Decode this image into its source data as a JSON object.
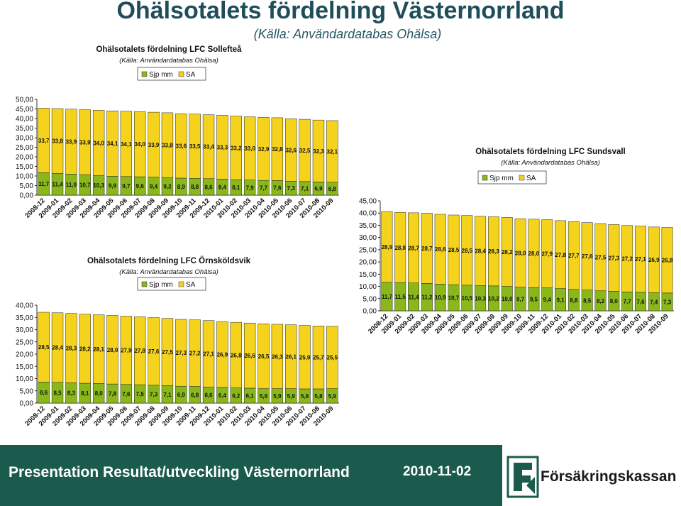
{
  "page": {
    "title": "Ohälsotalets fördelning Västernorrland",
    "subtitle": "(Källa: Användardatabas Ohälsa)"
  },
  "footer": {
    "title": "Presentation Resultat/utveckling Västernorrland",
    "date": "2010-11-02",
    "logo_text": "Försäkringskassan"
  },
  "colors": {
    "sa_yellow": "#f5d31c",
    "sjp_green": "#8ab81a",
    "footer_band": "#1a5b4e"
  },
  "chart_data": [
    {
      "id": "solleftea",
      "type": "bar",
      "stacked": true,
      "title": "Ohälsotalets fördelning LFC Sollefteå",
      "subtitle": "(Källa: Användardatabas Ohälsa)",
      "legend": "top",
      "categories": [
        "2008-12",
        "2009-01",
        "2009-02",
        "2009-03",
        "2009-04",
        "2009-05",
        "2009-06",
        "2009-07",
        "2009-08",
        "2009-09",
        "2009-10",
        "2009-11",
        "2009-12",
        "2010-01",
        "2010-02",
        "2010-03",
        "2010-04",
        "2010-05",
        "2010-06",
        "2010-07",
        "2010-08",
        "2010-09"
      ],
      "ylim": [
        0,
        50
      ],
      "yticks": [
        "0,00",
        "5,00",
        "10,00",
        "15,00",
        "20,00",
        "25,00",
        "30,00",
        "35,00",
        "40,00",
        "45,00",
        "50,00"
      ],
      "series": [
        {
          "name": "Sjp mm",
          "color": "#8ab81a",
          "values": [
            11.7,
            11.4,
            11.0,
            10.7,
            10.3,
            9.9,
            9.7,
            9.6,
            9.4,
            9.2,
            8.9,
            8.8,
            8.6,
            8.4,
            8.1,
            7.9,
            7.7,
            7.6,
            7.3,
            7.1,
            6.9,
            6.8
          ],
          "labels": [
            "11,7",
            "11,4",
            "11,0",
            "10,7",
            "10,3",
            "9,9",
            "9,7",
            "9,6",
            "9,4",
            "9,2",
            "8,9",
            "8,8",
            "8,6",
            "8,4",
            "8,1",
            "7,9",
            "7,7",
            "7,6",
            "7,3",
            "7,1",
            "6,9",
            "6,8"
          ]
        },
        {
          "name": "SA",
          "color": "#f5d31c",
          "values": [
            33.7,
            33.8,
            33.9,
            33.9,
            34.0,
            34.1,
            34.1,
            34.0,
            33.9,
            33.8,
            33.6,
            33.5,
            33.4,
            33.3,
            33.2,
            33.0,
            32.9,
            32.8,
            32.6,
            32.5,
            32.3,
            32.1
          ],
          "labels": [
            "33,7",
            "33,8",
            "33,9",
            "33,9",
            "34,0",
            "34,1",
            "34,1",
            "34,0",
            "33,9",
            "33,8",
            "33,6",
            "33,5",
            "33,4",
            "33,3",
            "33,2",
            "33,0",
            "32,9",
            "32,8",
            "32,6",
            "32,5",
            "32,3",
            "32,1"
          ]
        }
      ]
    },
    {
      "id": "ornskoldsvik",
      "type": "bar",
      "stacked": true,
      "title": "Ohälsotalets fördelning LFC Örnsköldsvik",
      "subtitle": "(Källa: Användardatabas Ohälsa)",
      "legend": "top",
      "categories": [
        "2008-12",
        "2009-01",
        "2009-02",
        "2009-03",
        "2009-04",
        "2009-05",
        "2009-06",
        "2009-07",
        "2009-08",
        "2009-09",
        "2009-10",
        "2009-11",
        "2009-12",
        "2010-01",
        "2010-02",
        "2010-03",
        "2010-04",
        "2010-05",
        "2010-06",
        "2010-07",
        "2010-08",
        "2010-09"
      ],
      "ylim": [
        0,
        40
      ],
      "yticks": [
        "0,00",
        "5,00",
        "10,00",
        "15,00",
        "20,00",
        "25,00",
        "30,00",
        "35,00",
        "40,00"
      ],
      "series": [
        {
          "name": "Sjp mm",
          "color": "#8ab81a",
          "values": [
            8.6,
            8.5,
            8.3,
            8.1,
            8.0,
            7.8,
            7.6,
            7.5,
            7.3,
            7.1,
            6.9,
            6.8,
            6.6,
            6.4,
            6.2,
            6.1,
            5.9,
            5.9,
            5.9,
            5.8,
            5.8,
            5.9
          ],
          "labels": [
            "8,6",
            "8,5",
            "8,3",
            "8,1",
            "8,0",
            "7,8",
            "7,6",
            "7,5",
            "7,3",
            "7,1",
            "6,9",
            "6,8",
            "6,6",
            "6,4",
            "6,2",
            "6,1",
            "5,9",
            "5,9",
            "5,9",
            "5,8",
            "5,8",
            "5,9"
          ]
        },
        {
          "name": "SA",
          "color": "#f5d31c",
          "values": [
            28.5,
            28.4,
            28.3,
            28.2,
            28.1,
            28.0,
            27.9,
            27.8,
            27.6,
            27.5,
            27.3,
            27.2,
            27.1,
            26.9,
            26.8,
            26.6,
            26.5,
            26.3,
            26.1,
            25.9,
            25.7,
            25.5
          ],
          "labels": [
            "28,5",
            "28,4",
            "28,3",
            "28,2",
            "28,1",
            "28,0",
            "27,9",
            "27,8",
            "27,6",
            "27,5",
            "27,3",
            "27,2",
            "27,1",
            "26,9",
            "26,8",
            "26,6",
            "26,5",
            "26,3",
            "26,1",
            "25,9",
            "25,7",
            "25,5"
          ]
        }
      ]
    },
    {
      "id": "sundsvall",
      "type": "bar",
      "stacked": true,
      "title": "Ohälsotalets fördelning LFC Sundsvall",
      "subtitle": "(Källa: Användardatabas Ohälsa)",
      "legend": "top",
      "categories": [
        "2008-12",
        "2009-01",
        "2009-02",
        "2009-03",
        "2009-04",
        "2009-05",
        "2009-06",
        "2009-07",
        "2009-08",
        "2009-09",
        "2009-10",
        "2009-11",
        "2009-12",
        "2010-01",
        "2010-02",
        "2010-03",
        "2010-04",
        "2010-05",
        "2010-06",
        "2010-07",
        "2010-08",
        "2010-09"
      ],
      "ylim": [
        0,
        45
      ],
      "yticks": [
        "0,00",
        "5,00",
        "10,00",
        "15,00",
        "20,00",
        "25,00",
        "30,00",
        "35,00",
        "40,00",
        "45,00"
      ],
      "series": [
        {
          "name": "Sjp mm",
          "color": "#8ab81a",
          "values": [
            11.7,
            11.5,
            11.4,
            11.2,
            10.9,
            10.7,
            10.5,
            10.3,
            10.2,
            10.0,
            9.7,
            9.5,
            9.4,
            9.1,
            8.8,
            8.5,
            8.2,
            8.0,
            7.7,
            7.6,
            7.4,
            7.3
          ],
          "labels": [
            "11,7",
            "11,5",
            "11,4",
            "11,2",
            "10,9",
            "10,7",
            "10,5",
            "10,3",
            "10,2",
            "10,0",
            "9,7",
            "9,5",
            "9,4",
            "9,1",
            "8,8",
            "8,5",
            "8,2",
            "8,0",
            "7,7",
            "7,6",
            "7,4",
            "7,3"
          ]
        },
        {
          "name": "SA",
          "color": "#f5d31c",
          "values": [
            28.9,
            28.8,
            28.7,
            28.7,
            28.6,
            28.5,
            28.5,
            28.4,
            28.3,
            28.2,
            28.0,
            28.0,
            27.9,
            27.8,
            27.7,
            27.6,
            27.5,
            27.3,
            27.2,
            27.1,
            26.9,
            26.8
          ],
          "labels": [
            "28,9",
            "28,8",
            "28,7",
            "28,7",
            "28,6",
            "28,5",
            "28,5",
            "28,4",
            "28,3",
            "28,2",
            "28,0",
            "28,0",
            "27,9",
            "27,8",
            "27,7",
            "27,6",
            "27,5",
            "27,3",
            "27,2",
            "27,1",
            "26,9",
            "26,8"
          ]
        }
      ]
    }
  ]
}
